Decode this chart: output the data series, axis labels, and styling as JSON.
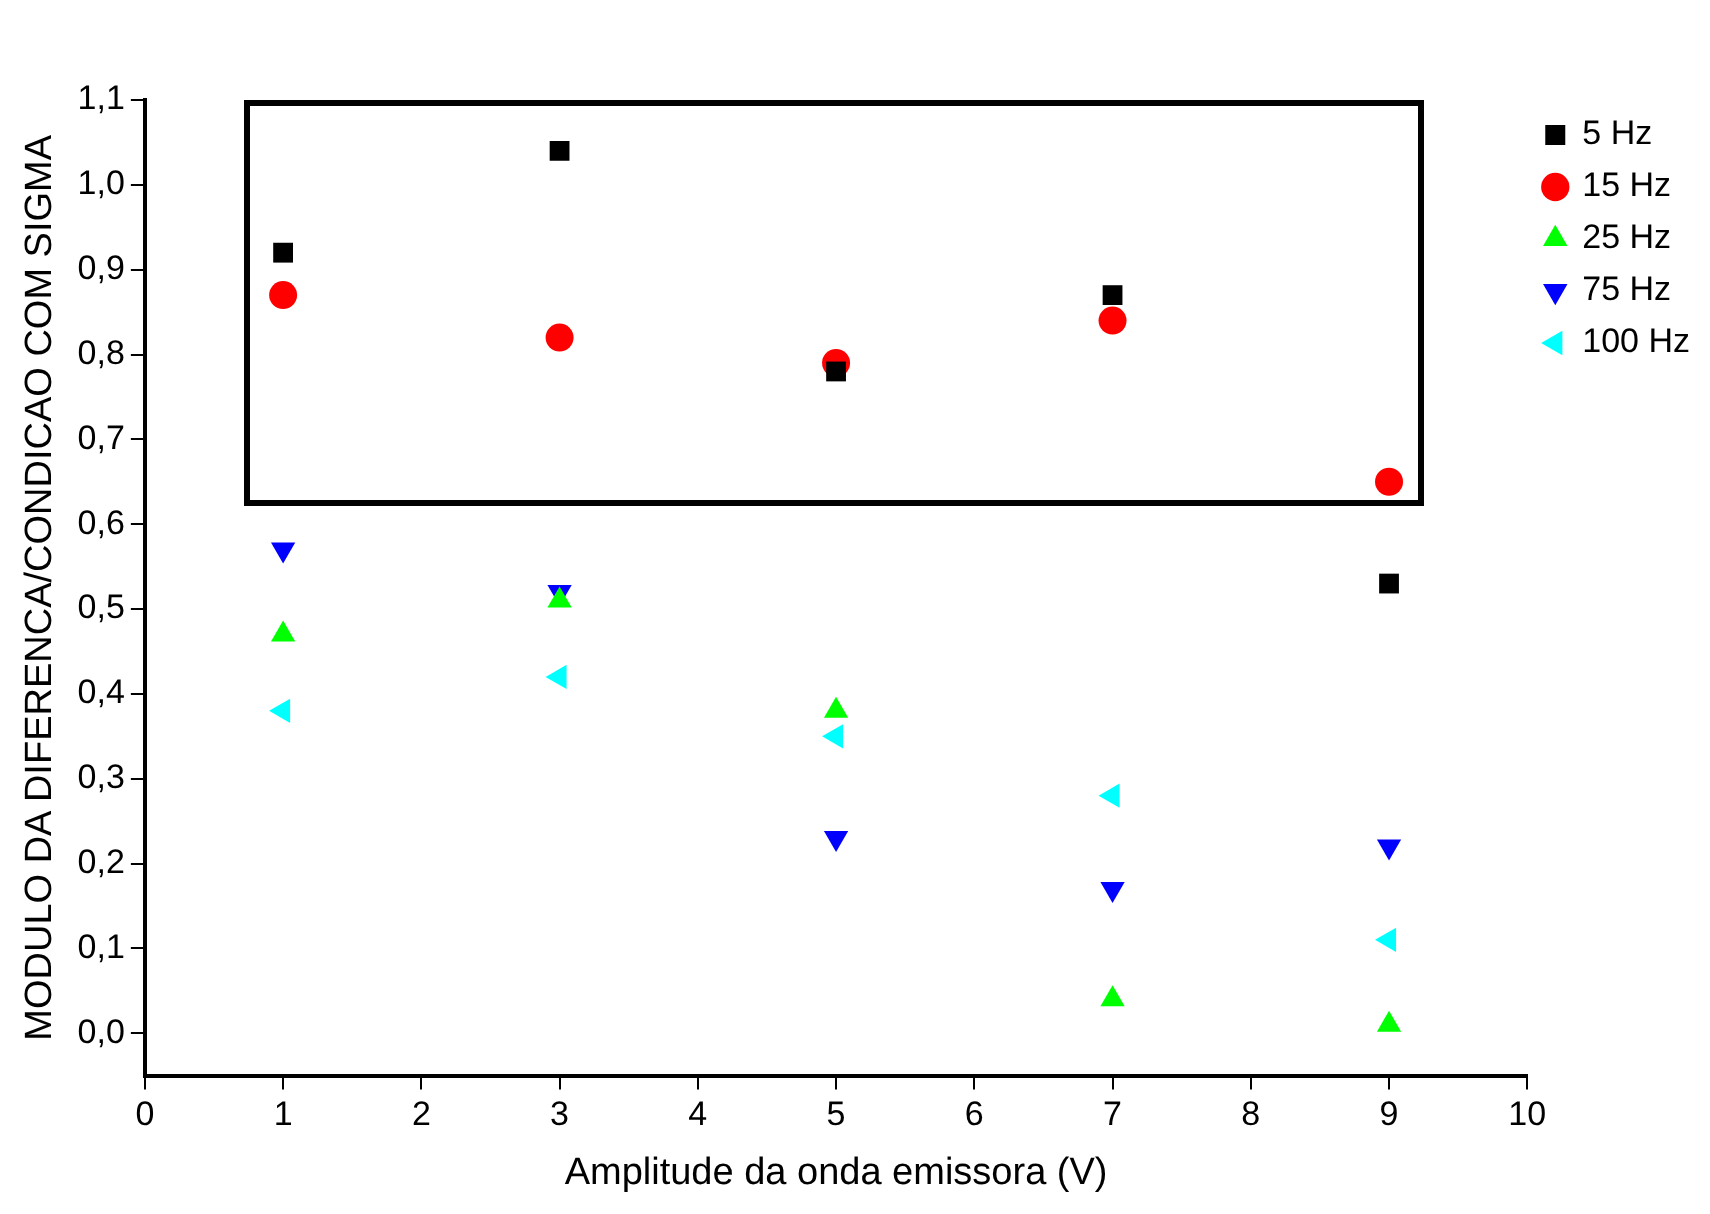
{
  "chart_data": {
    "type": "scatter",
    "xlabel": "Amplitude da onda emissora (V)",
    "ylabel": "MODULO DA DIFERENCA/CONDICAO COM SIGMA",
    "x": [
      1,
      3,
      5,
      7,
      9
    ],
    "series": [
      {
        "name": "5 Hz",
        "color": "#000000",
        "marker": "square",
        "values": [
          0.92,
          1.04,
          0.78,
          0.87,
          0.53
        ]
      },
      {
        "name": "15 Hz",
        "color": "#ff0000",
        "marker": "circle",
        "values": [
          0.87,
          0.82,
          0.79,
          0.84,
          0.65
        ]
      },
      {
        "name": "25 Hz",
        "color": "#00ff00",
        "marker": "triangle",
        "values": [
          0.47,
          0.51,
          0.38,
          0.04,
          0.01
        ]
      },
      {
        "name": "75 Hz",
        "color": "#0000ff",
        "marker": "triangle-down",
        "values": [
          0.57,
          0.52,
          0.23,
          0.17,
          0.22
        ]
      },
      {
        "name": "100 Hz",
        "color": "#00ffff",
        "marker": "triangle-left",
        "values": [
          0.38,
          0.42,
          0.35,
          0.28,
          0.11
        ]
      }
    ],
    "xlim": [
      0,
      10
    ],
    "xticks": [
      0,
      1,
      2,
      3,
      4,
      5,
      6,
      7,
      8,
      9,
      10
    ],
    "ylim": [
      -0.05,
      1.1
    ],
    "yticks": [
      {
        "value": 0,
        "label": "0,0"
      },
      {
        "value": 0.1,
        "label": "0,1"
      },
      {
        "value": 0.2,
        "label": "0,2"
      },
      {
        "value": 0.3,
        "label": "0,3"
      },
      {
        "value": 0.4,
        "label": "0,4"
      },
      {
        "value": 0.5,
        "label": "0,5"
      },
      {
        "value": 0.6,
        "label": "0,6"
      },
      {
        "value": 0.7,
        "label": "0,7"
      },
      {
        "value": 0.8,
        "label": "0,8"
      },
      {
        "value": 0.9,
        "label": "0,9"
      },
      {
        "value": 1.0,
        "label": "1,0"
      },
      {
        "value": 1.1,
        "label": "1,1"
      }
    ],
    "grid": false,
    "legend": "top right"
  }
}
